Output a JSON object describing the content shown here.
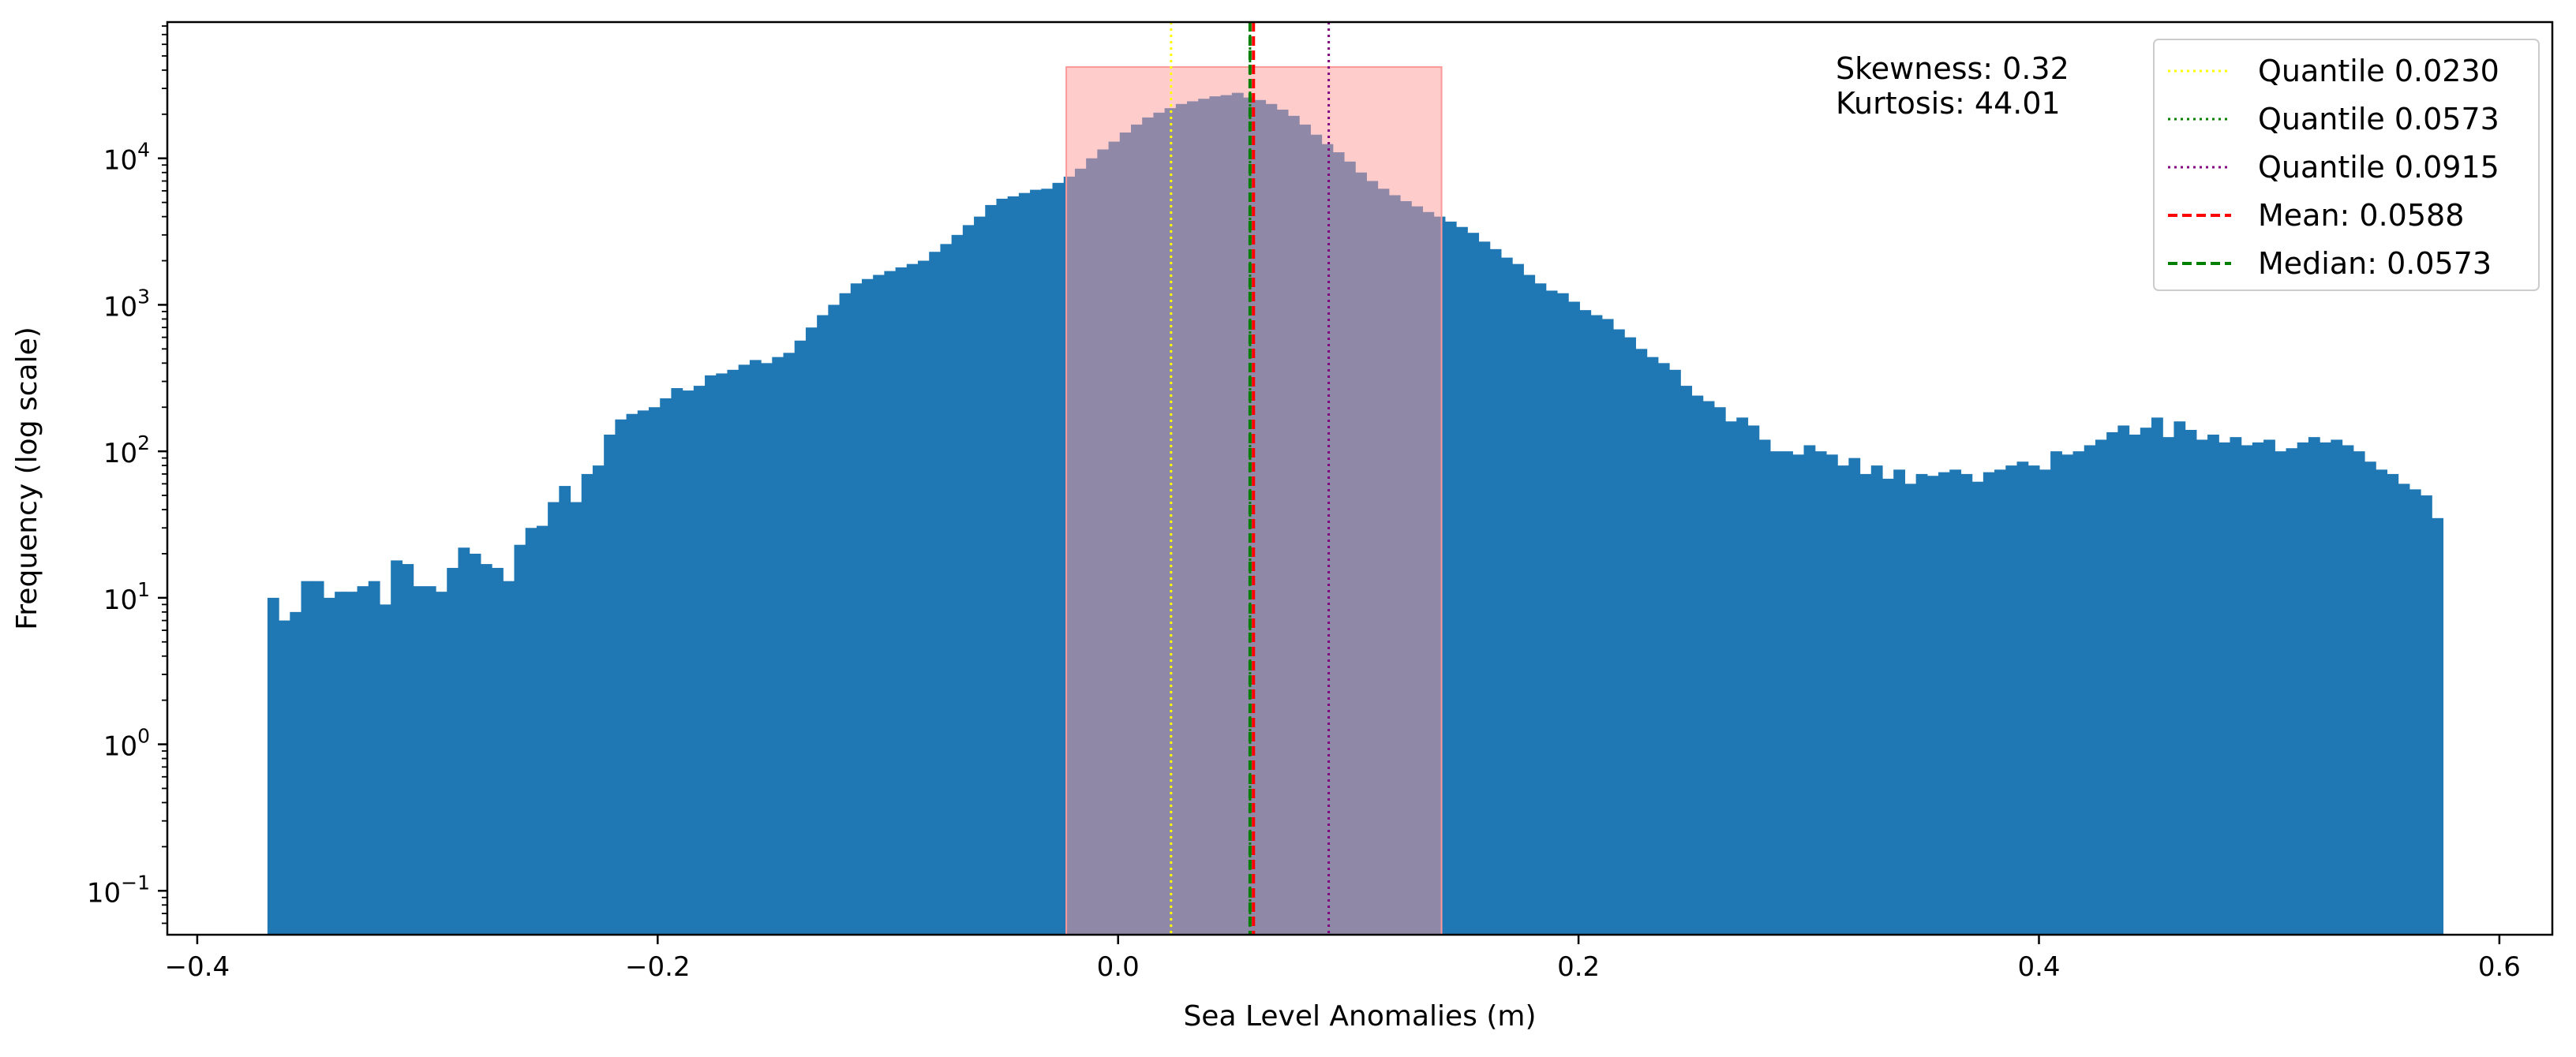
{
  "chart_data": {
    "type": "bar",
    "title": "",
    "xlabel": "Sea Level Anomalies (m)",
    "ylabel": "Frequency (log scale)",
    "xlim": [
      -0.413,
      0.623
    ],
    "ylim_log10": [
      -1.3,
      4.93
    ],
    "y_scale": "log",
    "grid": false,
    "legend_position": "top-right",
    "bar_color": "#1f77b4",
    "bins": {
      "start": -0.3695,
      "end": 0.5755,
      "counts": [
        10,
        7,
        8,
        13,
        13,
        10,
        11,
        11,
        12,
        13,
        9,
        18,
        17,
        12,
        12,
        11,
        16,
        22,
        20,
        17,
        16,
        13,
        23,
        30,
        31,
        45,
        58,
        45,
        70,
        80,
        130,
        165,
        180,
        190,
        200,
        230,
        270,
        260,
        280,
        330,
        340,
        360,
        390,
        420,
        400,
        440,
        470,
        570,
        700,
        850,
        1000,
        1200,
        1400,
        1500,
        1600,
        1700,
        1800,
        1900,
        2000,
        2300,
        2600,
        3000,
        3500,
        4000,
        4800,
        5300,
        5500,
        5800,
        6100,
        6200,
        6800,
        7500,
        8500,
        10000,
        11500,
        13000,
        15000,
        17000,
        19000,
        20500,
        22000,
        23500,
        24500,
        25500,
        26500,
        27000,
        28000,
        26000,
        25000,
        23500,
        21500,
        19500,
        17000,
        14500,
        12500,
        11000,
        9500,
        8000,
        7000,
        6200,
        5600,
        5100,
        4700,
        4300,
        4000,
        3700,
        3400,
        3100,
        2700,
        2400,
        2100,
        1900,
        1600,
        1400,
        1250,
        1200,
        1050,
        920,
        850,
        800,
        680,
        600,
        500,
        440,
        400,
        360,
        280,
        240,
        220,
        200,
        160,
        170,
        150,
        120,
        100,
        100,
        95,
        110,
        100,
        95,
        80,
        90,
        70,
        80,
        65,
        75,
        60,
        70,
        68,
        72,
        75,
        70,
        62,
        72,
        75,
        80,
        85,
        80,
        75,
        100,
        95,
        100,
        110,
        120,
        135,
        150,
        130,
        145,
        170,
        125,
        160,
        140,
        120,
        130,
        115,
        125,
        110,
        115,
        120,
        100,
        105,
        115,
        125,
        115,
        120,
        110,
        100,
        85,
        75,
        70,
        60,
        55,
        50,
        35
      ]
    },
    "x_ticks": [
      {
        "value": -0.4,
        "label": "−0.4"
      },
      {
        "value": -0.2,
        "label": "−0.2"
      },
      {
        "value": 0.0,
        "label": "0.0"
      },
      {
        "value": 0.2,
        "label": "0.2"
      },
      {
        "value": 0.4,
        "label": "0.4"
      },
      {
        "value": 0.6,
        "label": "0.6"
      }
    ],
    "y_ticks": [
      {
        "exp": -1,
        "base": "10",
        "sup": "−1"
      },
      {
        "exp": 0,
        "base": "10",
        "sup": "0"
      },
      {
        "exp": 1,
        "base": "10",
        "sup": "1"
      },
      {
        "exp": 2,
        "base": "10",
        "sup": "2"
      },
      {
        "exp": 3,
        "base": "10",
        "sup": "3"
      },
      {
        "exp": 4,
        "base": "10",
        "sup": "4"
      }
    ],
    "shaded_region": {
      "x_start": -0.0225,
      "x_end": 0.1405,
      "y_top": 42000,
      "color": "#ff9999",
      "opacity": 0.5
    },
    "vertical_lines": [
      {
        "name": "Quantile 0.0230",
        "x": 0.023,
        "color": "#ffff00",
        "style": "dotted"
      },
      {
        "name": "Quantile 0.0573",
        "x": 0.0573,
        "color": "#008000",
        "style": "dotted"
      },
      {
        "name": "Quantile 0.0915",
        "x": 0.0915,
        "color": "#800080",
        "style": "dotted"
      },
      {
        "name": "Mean: 0.0588",
        "x": 0.0588,
        "color": "#ff0000",
        "style": "dashed"
      },
      {
        "name": "Median: 0.0573",
        "x": 0.0573,
        "color": "#008000",
        "style": "dashed"
      }
    ],
    "annotations": {
      "skewness": "Skewness: 0.32",
      "kurtosis": "Kurtosis: 44.01"
    }
  }
}
